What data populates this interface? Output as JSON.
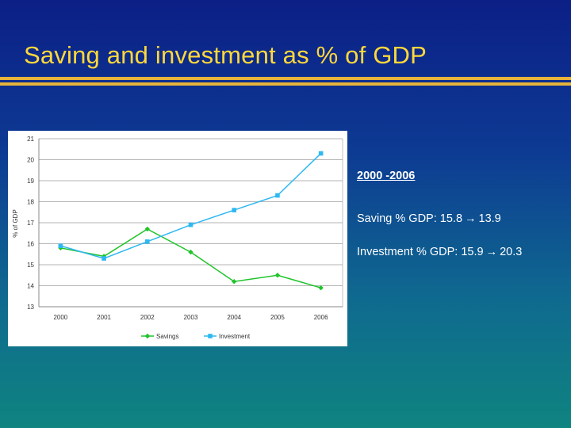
{
  "slide": {
    "title": "Saving and investment as % of GDP"
  },
  "panel": {
    "range": "2000 -2006",
    "saving": {
      "label": "Saving % GDP:",
      "from": "15.8",
      "arrow": "→",
      "to": "13.9"
    },
    "investment": {
      "label": "Investment % GDP:",
      "from": "15.9",
      "arrow": "→",
      "to": "20.3"
    }
  },
  "chart_data": {
    "type": "line",
    "title": "",
    "xlabel": "",
    "ylabel": "% of GDP",
    "x": [
      "2000",
      "2001",
      "2002",
      "2003",
      "2004",
      "2005",
      "2006"
    ],
    "ylim": [
      13,
      21
    ],
    "yticks": [
      13,
      14,
      15,
      16,
      17,
      18,
      19,
      20,
      21
    ],
    "grid": true,
    "legend": "bottom",
    "series": [
      {
        "name": "Savings",
        "values": [
          15.8,
          15.4,
          16.7,
          15.6,
          14.2,
          14.5,
          13.9
        ],
        "color": "#1fc42a",
        "marker": "diamond"
      },
      {
        "name": "Investment",
        "values": [
          15.9,
          15.3,
          16.1,
          16.9,
          17.6,
          18.3,
          20.3
        ],
        "color": "#2eb8f2",
        "marker": "square"
      }
    ],
    "colors": {
      "chart_background": "#ffffff",
      "plot_background": "#ffffff",
      "grid": "#9a9a9a",
      "text": "#333333"
    }
  }
}
